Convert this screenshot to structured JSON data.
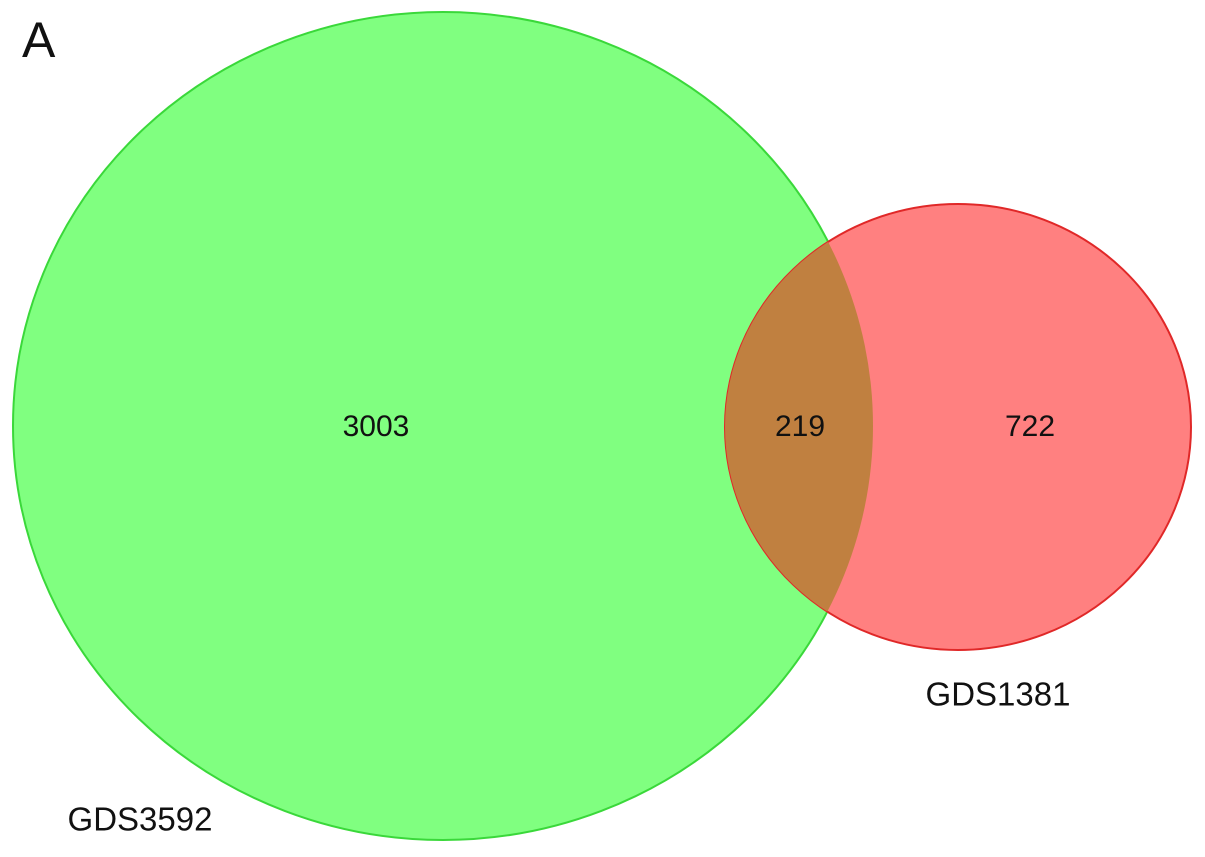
{
  "chart_data": {
    "type": "venn",
    "panel_label": "A",
    "sets": [
      {
        "name": "GDS3592",
        "color": "#80ff80",
        "stroke": "#3ad83a"
      },
      {
        "name": "GDS1381",
        "color": "#ff8080",
        "stroke": "#e02828"
      }
    ],
    "overlap_color": "#c08040",
    "regions": [
      "GDS3592 only",
      "both",
      "GDS1381 only"
    ],
    "values": [
      3003,
      219,
      722
    ]
  }
}
